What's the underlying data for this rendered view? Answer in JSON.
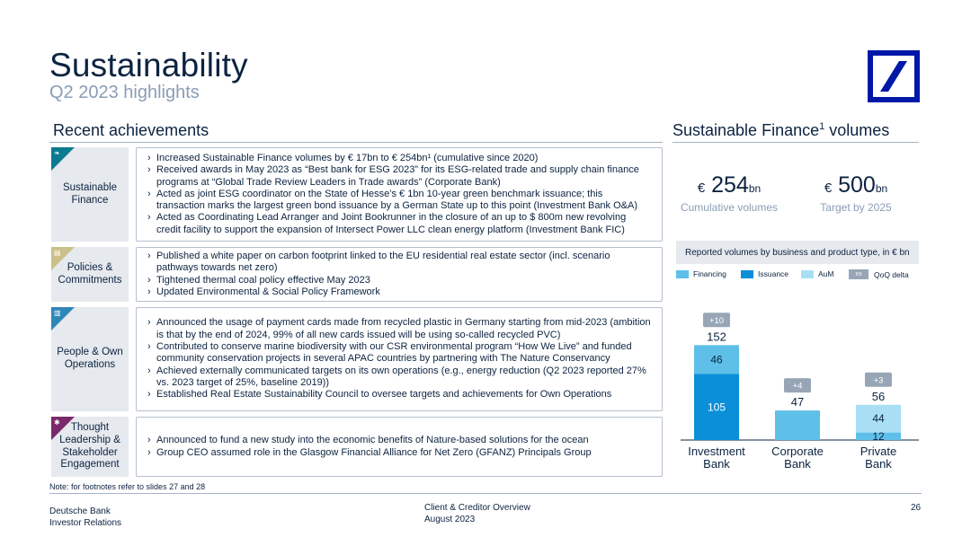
{
  "header": {
    "title": "Sustainability",
    "subtitle": "Q2 2023 highlights"
  },
  "left": {
    "heading": "Recent achievements",
    "rows": [
      {
        "label": "Sustainable Finance",
        "color": "#0c7a90",
        "bullets": [
          "Increased Sustainable Finance volumes by € 17bn to € 254bn¹ (cumulative since 2020)",
          "Received awards in May 2023 as “Best bank for ESG 2023” for its ESG-related trade and supply chain finance programs at “Global Trade Review Leaders in Trade awards” (Corporate Bank)",
          "Acted as joint ESG coordinator on the State of Hesse’s € 1bn 10-year green benchmark issuance; this transaction marks the largest green bond issuance by a German State up to this point (Investment Bank O&A)",
          "Acted as Coordinating Lead Arranger and Joint Bookrunner in the closure of an up to $ 800m new revolving credit facility to support the expansion of Intersect Power LLC clean energy platform (Investment Bank FIC)"
        ]
      },
      {
        "label": "Policies & Commitments",
        "color": "#c9c08a",
        "bullets": [
          "Published a white paper on carbon footprint linked to the EU residential real estate sector (incl. scenario pathways towards net zero)",
          "Tightened thermal coal policy effective May 2023",
          "Updated Environmental & Social Policy Framework"
        ]
      },
      {
        "label": "People & Own Operations",
        "color": "#2f86b8",
        "bullets": [
          "Announced the usage of payment cards made from recycled plastic in Germany starting from mid-2023 (ambition is that by the end of 2024, 99% of all new cards issued will be using so-called recycled PVC)",
          "Contributed to conserve marine biodiversity with our CSR environmental program “How We Live” and funded community conservation projects in several APAC countries by partnering with The Nature Conservancy",
          "Achieved externally communicated targets on its own operations (e.g., energy reduction (Q2 2023 reported 27% vs. 2023 target of 25%, baseline 2019))",
          "Established Real Estate Sustainability Council to oversee targets and achievements for Own Operations"
        ]
      },
      {
        "label": "Thought Leadership & Stakeholder Engagement",
        "color": "#7a2a6a",
        "bullets": [
          "Announced to fund a new study into the economic benefits of Nature-based solutions for the ocean",
          "Group CEO assumed role in the Glasgow Financial Alliance for Net Zero (GFANZ) Principals Group"
        ]
      }
    ]
  },
  "right": {
    "heading_main": "Sustainable Finance",
    "heading_sup": "1",
    "heading_tail": " volumes",
    "kpis": [
      {
        "currency": "€",
        "value": "254",
        "unit": "bn",
        "label": "Cumulative volumes"
      },
      {
        "currency": "€",
        "value": "500",
        "unit": "bn",
        "label": "Target by 2025"
      }
    ],
    "chart_title": "Reported volumes by business and product type, in € bn",
    "legend": {
      "financing": "Financing",
      "issuance": "Issuance",
      "aum": "AuM",
      "delta_marker": "xx",
      "delta": "QoQ delta"
    },
    "colors": {
      "financing": "#5ec0e8",
      "issuance": "#0a8fd8",
      "aum": "#a9dff5",
      "delta": "#97a5b6",
      "axis": "#0c2340"
    }
  },
  "chart_data": {
    "type": "bar",
    "stacked": true,
    "title": "Reported volumes by business and product type, in € bn",
    "categories": [
      "Investment Bank",
      "Corporate Bank",
      "Private Bank"
    ],
    "series": [
      {
        "name": "Issuance",
        "values": [
          105,
          0,
          0
        ]
      },
      {
        "name": "Financing",
        "values": [
          46,
          47,
          12
        ]
      },
      {
        "name": "AuM",
        "values": [
          0,
          0,
          44
        ]
      }
    ],
    "totals": [
      152,
      47,
      56
    ],
    "qoq_delta": [
      "+10",
      "+4",
      "+3"
    ],
    "ylim": [
      0,
      160
    ]
  },
  "footer": {
    "note": "Note: for footnotes refer to slides 27 and 28",
    "company": "Deutsche Bank",
    "department": "Investor Relations",
    "doc_title": "Client & Creditor Overview",
    "date": "August 2023",
    "page": "26"
  }
}
